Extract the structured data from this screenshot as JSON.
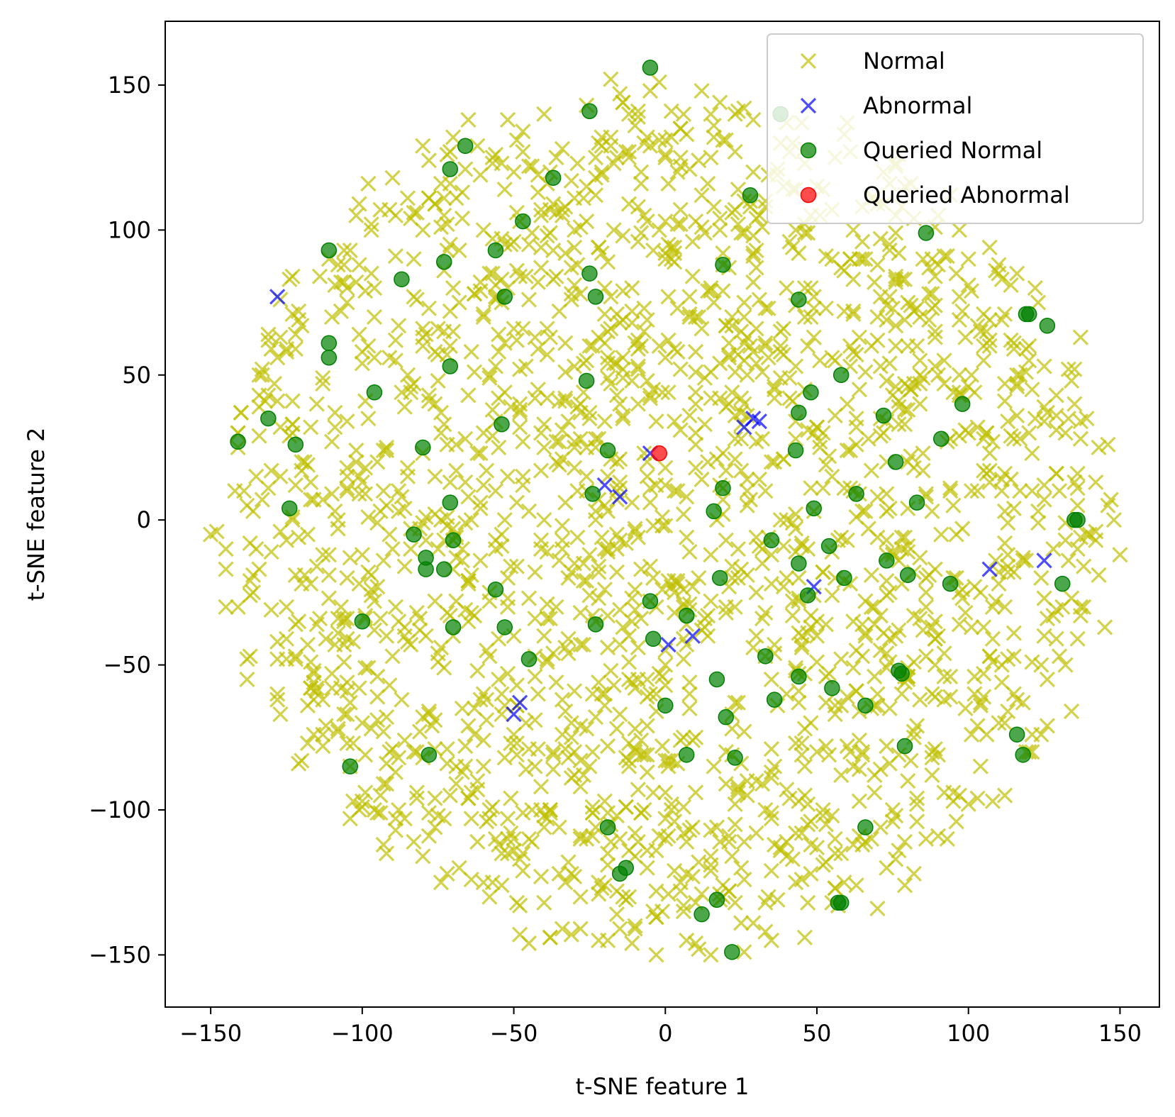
{
  "chart_data": {
    "type": "scatter",
    "xlabel": "t-SNE feature 1",
    "ylabel": "t-SNE feature 2",
    "xlim": [
      -165,
      163
    ],
    "ylim": [
      -168,
      172
    ],
    "xticks": [
      -150,
      -100,
      -50,
      0,
      50,
      100,
      150
    ],
    "yticks": [
      -150,
      -100,
      -50,
      0,
      50,
      100,
      150
    ],
    "grid": false,
    "legend_position": "top-right",
    "series": [
      {
        "name": "Normal",
        "marker": "x",
        "color": "#bfbf00",
        "approx_count": 2000,
        "distribution": "dense disc centered near (0, 0), radius about 150",
        "points": [
          [
            -150,
            -5
          ],
          [
            -140,
            37
          ],
          [
            -138,
            -48
          ],
          [
            -136,
            -25
          ],
          [
            -131,
            64
          ],
          [
            -128,
            -60
          ],
          [
            -127,
            15
          ],
          [
            -123,
            84
          ],
          [
            -121,
            -35
          ],
          [
            -118,
            -77
          ],
          [
            -113,
            -62
          ],
          [
            -110,
            70
          ],
          [
            -106,
            -49
          ],
          [
            -101,
            88
          ],
          [
            -100,
            -99
          ],
          [
            -95,
            20
          ],
          [
            -92,
            -115
          ],
          [
            -90,
            118
          ],
          [
            -87,
            -62
          ],
          [
            -85,
            50
          ],
          [
            -80,
            100
          ],
          [
            -78,
            -101
          ],
          [
            -75,
            -10
          ],
          [
            -70,
            132
          ],
          [
            -68,
            -120
          ],
          [
            -65,
            138
          ],
          [
            -62,
            -90
          ],
          [
            -60,
            70
          ],
          [
            -58,
            -130
          ],
          [
            -55,
            25
          ],
          [
            -50,
            120
          ],
          [
            -48,
            -143
          ],
          [
            -45,
            95
          ],
          [
            -42,
            -60
          ],
          [
            -40,
            140
          ],
          [
            -38,
            -144
          ],
          [
            -34,
            128
          ],
          [
            -30,
            -80
          ],
          [
            -28,
            -130
          ],
          [
            -25,
            60
          ],
          [
            -22,
            -145
          ],
          [
            -18,
            152
          ],
          [
            -15,
            -110
          ],
          [
            -12,
            140
          ],
          [
            -10,
            -140
          ],
          [
            -8,
            120
          ],
          [
            -5,
            148
          ],
          [
            -3,
            -150
          ],
          [
            0,
            90
          ],
          [
            2,
            -100
          ],
          [
            5,
            125
          ],
          [
            10,
            30
          ],
          [
            12,
            148
          ],
          [
            15,
            -150
          ],
          [
            18,
            100
          ],
          [
            20,
            -30
          ],
          [
            23,
            140
          ],
          [
            25,
            -120
          ],
          [
            28,
            60
          ],
          [
            30,
            -90
          ],
          [
            33,
            110
          ],
          [
            35,
            -145
          ],
          [
            38,
            0
          ],
          [
            40,
            -60
          ],
          [
            42,
            130
          ],
          [
            45,
            -124
          ],
          [
            48,
            80
          ],
          [
            50,
            -40
          ],
          [
            55,
            90
          ],
          [
            58,
            -115
          ],
          [
            60,
            137
          ],
          [
            65,
            -80
          ],
          [
            68,
            60
          ],
          [
            70,
            -134
          ],
          [
            72,
            120
          ],
          [
            75,
            -100
          ],
          [
            80,
            20
          ],
          [
            82,
            -122
          ],
          [
            85,
            90
          ],
          [
            88,
            -60
          ],
          [
            90,
            50
          ],
          [
            93,
            -110
          ],
          [
            95,
            -20
          ],
          [
            98,
            72
          ],
          [
            100,
            -98
          ],
          [
            103,
            10
          ],
          [
            105,
            60
          ],
          [
            108,
            -30
          ],
          [
            110,
            85
          ],
          [
            112,
            -95
          ],
          [
            115,
            -60
          ],
          [
            118,
            -63
          ],
          [
            120,
            30
          ],
          [
            122,
            80
          ],
          [
            125,
            -40
          ],
          [
            128,
            -10
          ],
          [
            130,
            10
          ],
          [
            132,
            -50
          ],
          [
            135,
            40
          ],
          [
            138,
            -30
          ],
          [
            140,
            -5
          ],
          [
            143,
            25
          ],
          [
            146,
            5
          ],
          [
            150,
            -12
          ],
          [
            -142,
            10
          ],
          [
            -145,
            -30
          ],
          [
            -135,
            -10
          ],
          [
            -120,
            20
          ],
          [
            -115,
            40
          ],
          [
            -108,
            0
          ],
          [
            -105,
            -20
          ],
          [
            -98,
            60
          ],
          [
            -92,
            -40
          ],
          [
            -88,
            10
          ],
          [
            -82,
            -80
          ],
          [
            -76,
            40
          ],
          [
            -70,
            -40
          ],
          [
            -64,
            0
          ],
          [
            -60,
            -60
          ],
          [
            -56,
            10
          ],
          [
            -52,
            -20
          ],
          [
            -48,
            40
          ],
          [
            -44,
            -100
          ],
          [
            -40,
            0
          ],
          [
            -36,
            20
          ],
          [
            -32,
            -20
          ],
          [
            -28,
            40
          ],
          [
            -24,
            -60
          ],
          [
            -20,
            -10
          ],
          [
            -16,
            20
          ],
          [
            -12,
            -40
          ],
          [
            -8,
            60
          ],
          [
            -4,
            -20
          ],
          [
            4,
            10
          ],
          [
            8,
            -60
          ],
          [
            14,
            20
          ],
          [
            22,
            -20
          ],
          [
            26,
            40
          ],
          [
            32,
            -10
          ],
          [
            36,
            20
          ],
          [
            44,
            -20
          ],
          [
            52,
            30
          ],
          [
            56,
            -20
          ],
          [
            62,
            10
          ],
          [
            66,
            -40
          ],
          [
            72,
            30
          ],
          [
            78,
            -10
          ],
          [
            84,
            40
          ],
          [
            88,
            -80
          ],
          [
            94,
            10
          ],
          [
            102,
            -60
          ],
          [
            106,
            30
          ],
          [
            112,
            -30
          ],
          [
            116,
            50
          ],
          [
            124,
            -20
          ],
          [
            -100,
            -70
          ],
          [
            -90,
            -10
          ],
          [
            -80,
            60
          ],
          [
            -70,
            80
          ],
          [
            -60,
            100
          ],
          [
            -50,
            -110
          ],
          [
            -40,
            -40
          ],
          [
            -30,
            100
          ],
          [
            -20,
            80
          ],
          [
            -10,
            -80
          ],
          [
            0,
            -50
          ],
          [
            10,
            70
          ],
          [
            20,
            -80
          ],
          [
            30,
            -40
          ],
          [
            40,
            80
          ],
          [
            50,
            -80
          ],
          [
            60,
            40
          ],
          [
            70,
            -60
          ],
          [
            80,
            60
          ],
          [
            90,
            -40
          ],
          [
            100,
            30
          ],
          [
            110,
            -70
          ]
        ]
      },
      {
        "name": "Abnormal",
        "marker": "x",
        "color": "#0000ff",
        "points": [
          [
            -128,
            77
          ],
          [
            -5,
            23
          ],
          [
            -20,
            12
          ],
          [
            -15,
            8
          ],
          [
            26,
            32
          ],
          [
            29,
            35
          ],
          [
            31,
            34
          ],
          [
            49,
            -23
          ],
          [
            1,
            -43
          ],
          [
            9,
            -40
          ],
          [
            -48,
            -63
          ],
          [
            -50,
            -67
          ],
          [
            107,
            -17
          ],
          [
            125,
            -14
          ]
        ]
      },
      {
        "name": "Queried Normal",
        "marker": "o",
        "color": "#008000",
        "points": [
          [
            -5,
            156
          ],
          [
            -25,
            141
          ],
          [
            38,
            140
          ],
          [
            -66,
            129
          ],
          [
            -71,
            121
          ],
          [
            -37,
            118
          ],
          [
            -47,
            103
          ],
          [
            28,
            112
          ],
          [
            86,
            99
          ],
          [
            -111,
            93
          ],
          [
            -73,
            89
          ],
          [
            -56,
            93
          ],
          [
            -87,
            83
          ],
          [
            -25,
            85
          ],
          [
            19,
            88
          ],
          [
            -53,
            77
          ],
          [
            -23,
            77
          ],
          [
            44,
            76
          ],
          [
            -111,
            61
          ],
          [
            -111,
            56
          ],
          [
            -71,
            53
          ],
          [
            119,
            71
          ],
          [
            120,
            71
          ],
          [
            126,
            67
          ],
          [
            58,
            50
          ],
          [
            -26,
            48
          ],
          [
            -96,
            44
          ],
          [
            48,
            44
          ],
          [
            98,
            40
          ],
          [
            -131,
            35
          ],
          [
            -54,
            33
          ],
          [
            44,
            37
          ],
          [
            72,
            36
          ],
          [
            -141,
            27
          ],
          [
            -122,
            26
          ],
          [
            -80,
            25
          ],
          [
            -19,
            24
          ],
          [
            43,
            24
          ],
          [
            91,
            28
          ],
          [
            76,
            20
          ],
          [
            -71,
            6
          ],
          [
            -24,
            9
          ],
          [
            19,
            11
          ],
          [
            63,
            9
          ],
          [
            83,
            6
          ],
          [
            -124,
            4
          ],
          [
            16,
            3
          ],
          [
            49,
            4
          ],
          [
            135,
            0
          ],
          [
            136,
            0
          ],
          [
            -83,
            -5
          ],
          [
            -70,
            -7
          ],
          [
            35,
            -7
          ],
          [
            54,
            -9
          ],
          [
            -79,
            -13
          ],
          [
            -79,
            -17
          ],
          [
            -73,
            -17
          ],
          [
            73,
            -14
          ],
          [
            44,
            -15
          ],
          [
            59,
            -20
          ],
          [
            80,
            -19
          ],
          [
            18,
            -20
          ],
          [
            -56,
            -24
          ],
          [
            94,
            -22
          ],
          [
            131,
            -22
          ],
          [
            -5,
            -28
          ],
          [
            47,
            -26
          ],
          [
            7,
            -33
          ],
          [
            -100,
            -35
          ],
          [
            -53,
            -37
          ],
          [
            -70,
            -37
          ],
          [
            -23,
            -36
          ],
          [
            -4,
            -41
          ],
          [
            -45,
            -48
          ],
          [
            33,
            -47
          ],
          [
            77,
            -52
          ],
          [
            78,
            -53
          ],
          [
            17,
            -55
          ],
          [
            44,
            -54
          ],
          [
            55,
            -58
          ],
          [
            36,
            -62
          ],
          [
            0,
            -64
          ],
          [
            20,
            -68
          ],
          [
            66,
            -64
          ],
          [
            -78,
            -81
          ],
          [
            7,
            -81
          ],
          [
            23,
            -82
          ],
          [
            79,
            -78
          ],
          [
            -104,
            -85
          ],
          [
            116,
            -74
          ],
          [
            118,
            -81
          ],
          [
            -19,
            -106
          ],
          [
            66,
            -106
          ],
          [
            -15,
            -122
          ],
          [
            -13,
            -120
          ],
          [
            17,
            -131
          ],
          [
            12,
            -136
          ],
          [
            57,
            -132
          ],
          [
            58,
            -132
          ],
          [
            22,
            -149
          ]
        ]
      },
      {
        "name": "Queried Abnormal",
        "marker": "o",
        "color": "#ff0000",
        "points": [
          [
            -2,
            23
          ]
        ]
      }
    ]
  }
}
